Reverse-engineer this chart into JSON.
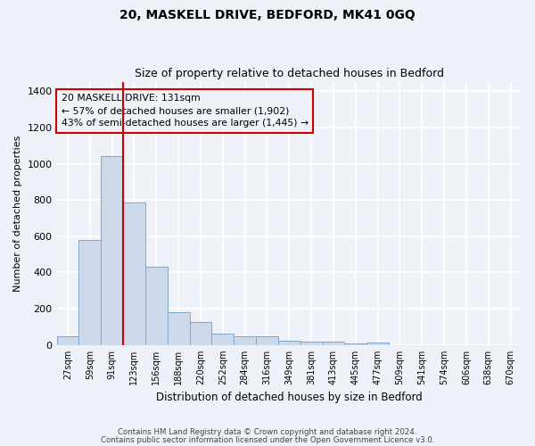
{
  "title1": "20, MASKELL DRIVE, BEDFORD, MK41 0GQ",
  "title2": "Size of property relative to detached houses in Bedford",
  "xlabel": "Distribution of detached houses by size in Bedford",
  "ylabel": "Number of detached properties",
  "bar_labels": [
    "27sqm",
    "59sqm",
    "91sqm",
    "123sqm",
    "156sqm",
    "188sqm",
    "220sqm",
    "252sqm",
    "284sqm",
    "316sqm",
    "349sqm",
    "381sqm",
    "413sqm",
    "445sqm",
    "477sqm",
    "509sqm",
    "541sqm",
    "574sqm",
    "606sqm",
    "638sqm",
    "670sqm"
  ],
  "bar_values": [
    50,
    578,
    1040,
    785,
    430,
    180,
    125,
    65,
    48,
    48,
    25,
    20,
    18,
    10,
    12,
    0,
    0,
    0,
    0,
    0,
    0
  ],
  "bar_color": "#ccd9ea",
  "bar_edge_color": "#7fa8cc",
  "red_line_index": 3,
  "property_label": "20 MASKELL DRIVE: 131sqm",
  "annotation_line1": "← 57% of detached houses are smaller (1,902)",
  "annotation_line2": "43% of semi-detached houses are larger (1,445) →",
  "vline_color": "#cc0000",
  "annotation_box_edgecolor": "#cc0000",
  "ylim": [
    0,
    1450
  ],
  "yticks": [
    0,
    200,
    400,
    600,
    800,
    1000,
    1200,
    1400
  ],
  "footnote1": "Contains HM Land Registry data © Crown copyright and database right 2024.",
  "footnote2": "Contains public sector information licensed under the Open Government Licence v3.0.",
  "bg_color": "#eef2f8",
  "grid_color": "#ffffff"
}
